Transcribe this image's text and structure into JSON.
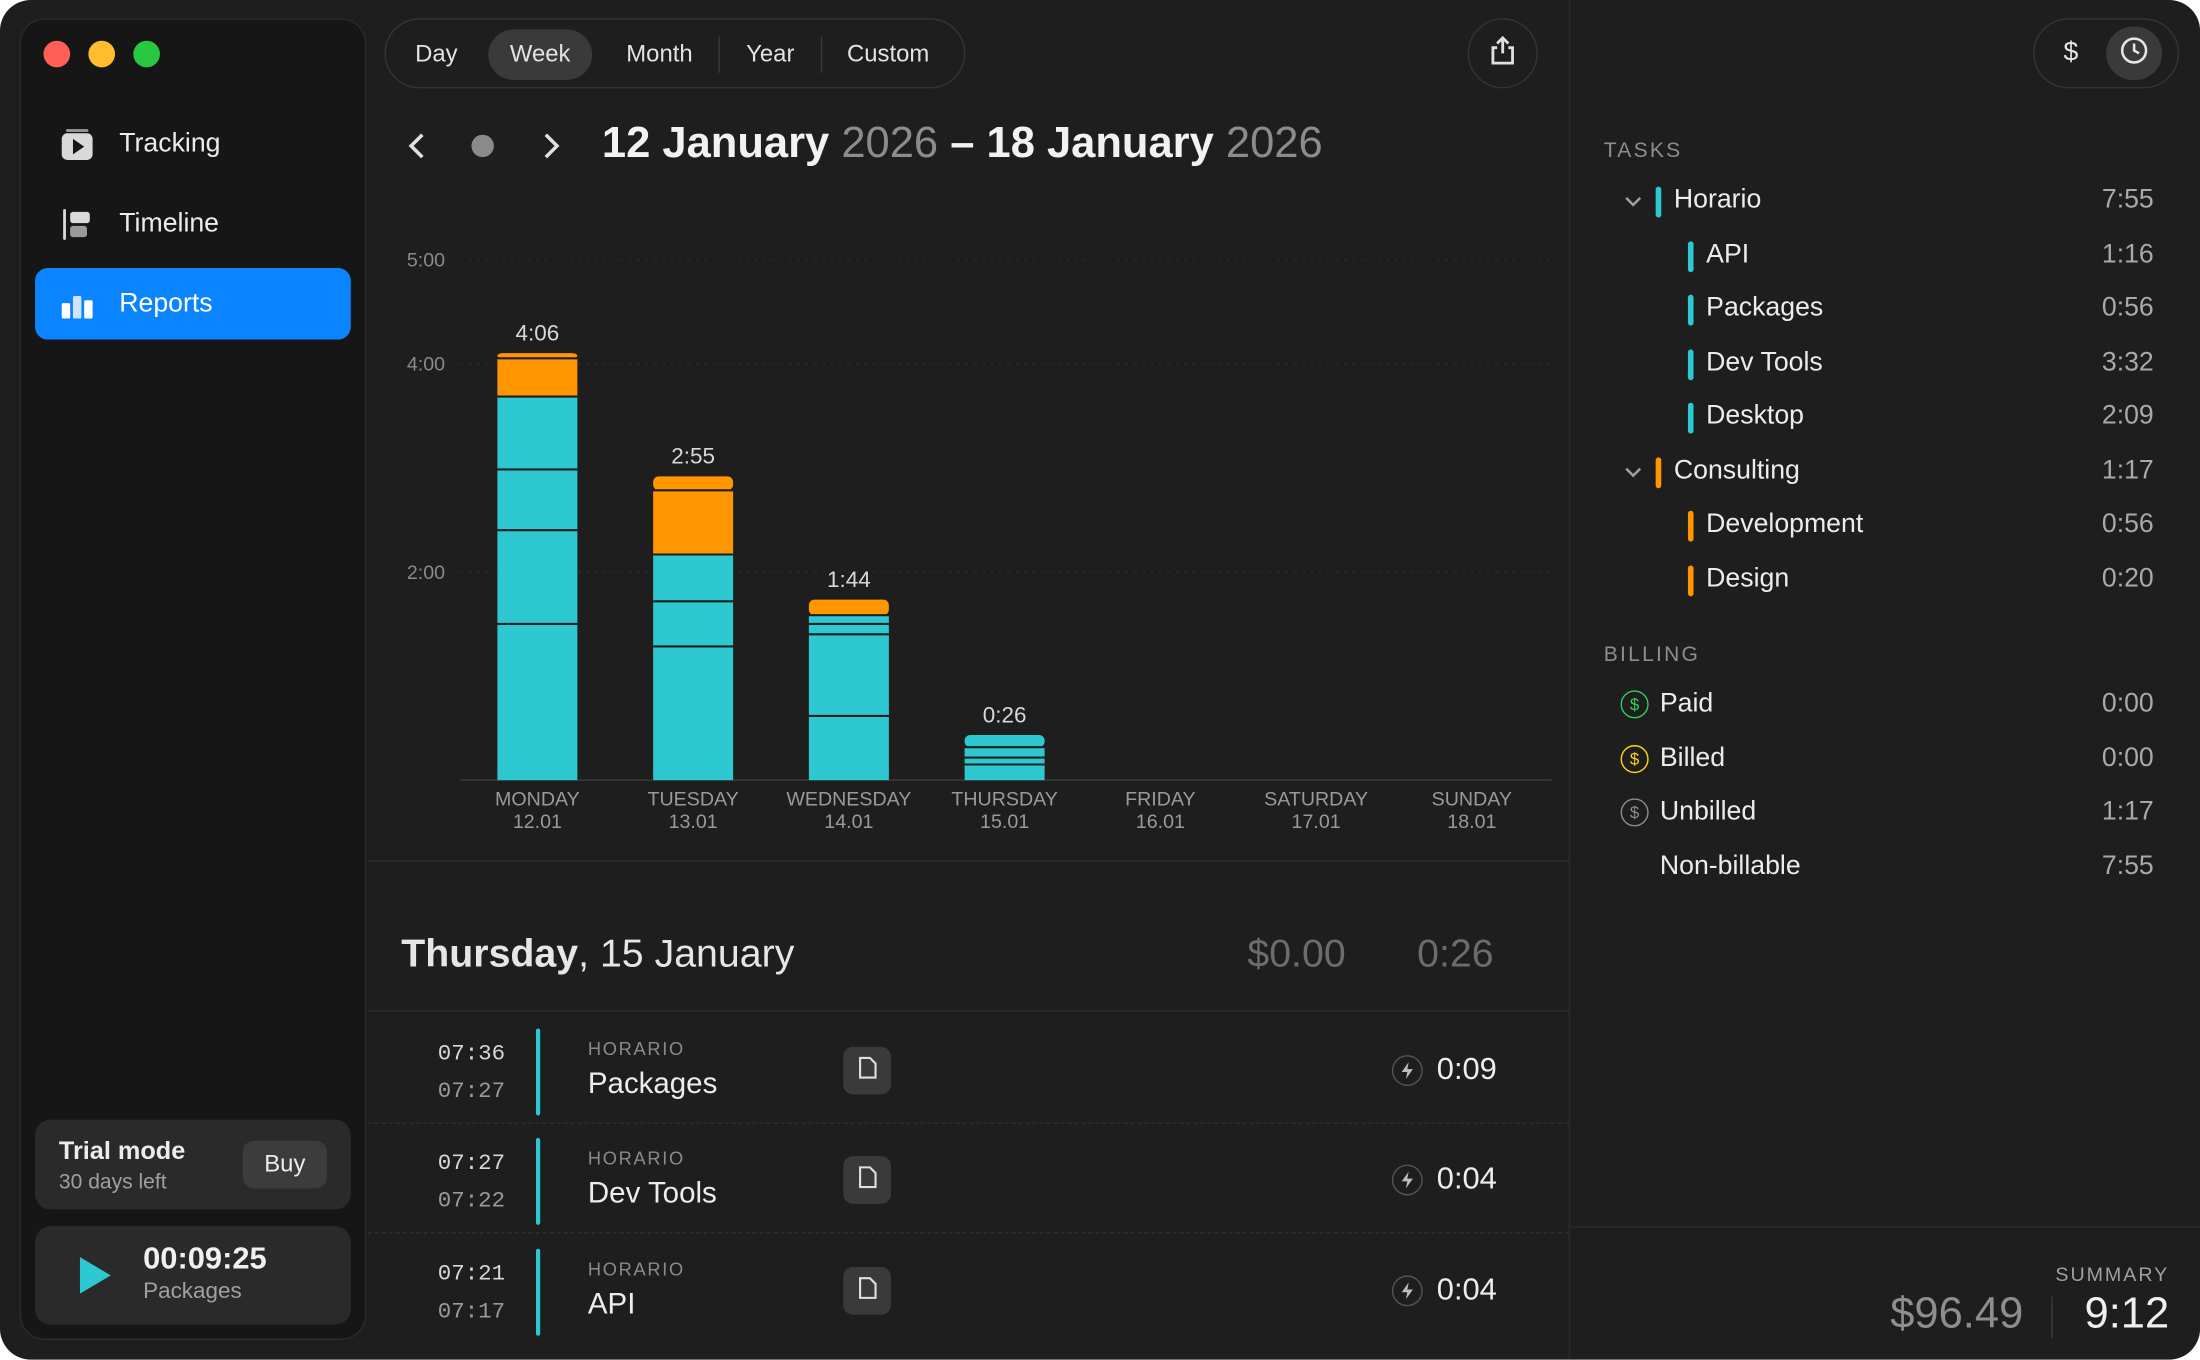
{
  "window": {
    "traffic_colors": [
      "#ff5f57",
      "#febc2e",
      "#28c840"
    ]
  },
  "sidebar": {
    "items": [
      {
        "label": "Tracking",
        "icon": "play-square-icon"
      },
      {
        "label": "Timeline",
        "icon": "timeline-icon"
      },
      {
        "label": "Reports",
        "icon": "bar-chart-icon",
        "active": true
      }
    ],
    "trial": {
      "title": "Trial mode",
      "subtitle": "30 days left",
      "buy_label": "Buy"
    },
    "player": {
      "time": "00:09:25",
      "task": "Packages"
    }
  },
  "toolbar": {
    "ranges": [
      "Day",
      "Week",
      "Month",
      "Year",
      "Custom"
    ],
    "selected": "Week",
    "share_icon": "share-icon"
  },
  "period": {
    "start_day_month": "12 January",
    "start_year": "2026",
    "separator": "–",
    "end_day_month": "18 January",
    "end_year": "2026"
  },
  "chart_data": {
    "type": "bar",
    "stacked": true,
    "y_ticks": [
      {
        "value": 300,
        "label": "5:00"
      },
      {
        "value": 240,
        "label": "4:00"
      },
      {
        "value": 120,
        "label": "2:00"
      }
    ],
    "days": [
      {
        "day": "MONDAY",
        "date": "12.01",
        "total_label": "4:06",
        "segments": [
          {
            "minutes": 90,
            "color": "#2ec9d0"
          },
          {
            "minutes": 54,
            "color": "#2ec9d0"
          },
          {
            "minutes": 35,
            "color": "#2ec9d0"
          },
          {
            "minutes": 42,
            "color": "#2ec9d0"
          },
          {
            "minutes": 22,
            "color": "#ff9500"
          },
          {
            "minutes": 3,
            "color": "#ff9500"
          }
        ]
      },
      {
        "day": "TUESDAY",
        "date": "13.01",
        "total_label": "2:55",
        "segments": [
          {
            "minutes": 77,
            "color": "#2ec9d0"
          },
          {
            "minutes": 26,
            "color": "#2ec9d0"
          },
          {
            "minutes": 27,
            "color": "#2ec9d0"
          },
          {
            "minutes": 37,
            "color": "#ff9500"
          },
          {
            "minutes": 8,
            "color": "#ff9500"
          }
        ]
      },
      {
        "day": "WEDNESDAY",
        "date": "14.01",
        "total_label": "1:44",
        "segments": [
          {
            "minutes": 37,
            "color": "#2ec9d0"
          },
          {
            "minutes": 47,
            "color": "#2ec9d0"
          },
          {
            "minutes": 6,
            "color": "#2ec9d0"
          },
          {
            "minutes": 5,
            "color": "#2ec9d0"
          },
          {
            "minutes": 9,
            "color": "#ff9500"
          }
        ]
      },
      {
        "day": "THURSDAY",
        "date": "15.01",
        "total_label": "0:26",
        "segments": [
          {
            "minutes": 9,
            "color": "#2ec9d0"
          },
          {
            "minutes": 4,
            "color": "#2ec9d0"
          },
          {
            "minutes": 6,
            "color": "#2ec9d0"
          },
          {
            "minutes": 7,
            "color": "#2ec9d0"
          }
        ]
      },
      {
        "day": "FRIDAY",
        "date": "16.01",
        "total_label": "",
        "segments": []
      },
      {
        "day": "SATURDAY",
        "date": "17.01",
        "total_label": "",
        "segments": []
      },
      {
        "day": "SUNDAY",
        "date": "18.01",
        "total_label": "",
        "segments": []
      }
    ]
  },
  "day_detail": {
    "weekday": "Thursday",
    "date": ", 15 January",
    "amount": "$0.00",
    "duration": "0:26",
    "entries": [
      {
        "start": "07:36",
        "end": "07:27",
        "project": "HORARIO",
        "task": "Packages",
        "duration": "0:09"
      },
      {
        "start": "07:27",
        "end": "07:22",
        "project": "HORARIO",
        "task": "Dev Tools",
        "duration": "0:04"
      },
      {
        "start": "07:21",
        "end": "07:17",
        "project": "HORARIO",
        "task": "API",
        "duration": "0:04"
      }
    ]
  },
  "right_panel": {
    "toggle": {
      "dollar_label": "$",
      "clock_icon": "clock-icon"
    },
    "tasks_title": "TASKS",
    "tasks": [
      {
        "label": "Horario",
        "value": "7:55",
        "level": 0,
        "color": "#2ec9d0",
        "expanded": true
      },
      {
        "label": "API",
        "value": "1:16",
        "level": 1,
        "color": "#2ec9d0"
      },
      {
        "label": "Packages",
        "value": "0:56",
        "level": 1,
        "color": "#2ec9d0"
      },
      {
        "label": "Dev Tools",
        "value": "3:32",
        "level": 1,
        "color": "#2ec9d0"
      },
      {
        "label": "Desktop",
        "value": "2:09",
        "level": 1,
        "color": "#2ec9d0"
      },
      {
        "label": "Consulting",
        "value": "1:17",
        "level": 0,
        "color": "#ff9500",
        "expanded": true
      },
      {
        "label": "Development",
        "value": "0:56",
        "level": 1,
        "color": "#ff9500"
      },
      {
        "label": "Design",
        "value": "0:20",
        "level": 1,
        "color": "#ff9500"
      }
    ],
    "billing_title": "BILLING",
    "billing": [
      {
        "label": "Paid",
        "value": "0:00",
        "icon_color": "#30d158"
      },
      {
        "label": "Billed",
        "value": "0:00",
        "icon_color": "#ffd60a"
      },
      {
        "label": "Unbilled",
        "value": "1:17",
        "icon_color": "#8e8e8e"
      },
      {
        "label": "Non-billable",
        "value": "7:55",
        "icon_color": ""
      }
    ],
    "summary": {
      "title": "SUMMARY",
      "amount": "$96.49",
      "duration": "9:12"
    }
  }
}
